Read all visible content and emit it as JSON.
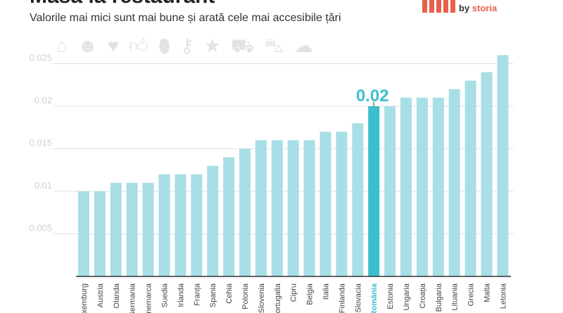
{
  "header": {
    "title": "Masă la restaurant",
    "subtitle": "Valorile mai mici sunt mai bune și arată cele mai accesibile țări",
    "logo_by": "by",
    "logo_brand": "storia"
  },
  "icons": [
    "home-icon",
    "smiley-icon",
    "heart-icon",
    "thumbs-up-icon",
    "pin-icon",
    "key-icon",
    "star-icon",
    "car-icon",
    "cart-icon",
    "chef-hat-icon"
  ],
  "colors": {
    "bar": "#a7dfe4",
    "highlight": "#3bbfcc",
    "grid": "#e2e2e2",
    "axis": "#333333"
  },
  "chart_data": {
    "type": "bar",
    "title": "Masă la restaurant",
    "subtitle": "Valorile mai mici sunt mai bune și arată cele mai accesibile țări",
    "categories": [
      "Luxemburg",
      "Austria",
      "Olanda",
      "Germania",
      "Danemarca",
      "Suedia",
      "Irlanda",
      "Franța",
      "Spania",
      "Cehia",
      "Polonia",
      "Slovenia",
      "Portugalia",
      "Cipru",
      "Belgia",
      "Italia",
      "Finlanda",
      "Slovacia",
      "România",
      "Estonia",
      "Ungaria",
      "Croația",
      "Bulgaria",
      "Lituania",
      "Grecia",
      "Malta",
      "Letonia"
    ],
    "values": [
      0.01,
      0.01,
      0.011,
      0.011,
      0.011,
      0.012,
      0.012,
      0.012,
      0.013,
      0.014,
      0.015,
      0.016,
      0.016,
      0.016,
      0.016,
      0.017,
      0.017,
      0.018,
      0.02,
      0.02,
      0.021,
      0.021,
      0.021,
      0.022,
      0.023,
      0.024,
      0.026
    ],
    "highlight": "România",
    "highlight_label": "0.02",
    "yticks": [
      "0.005",
      "0.01",
      "0.015",
      "0.02",
      "0.025"
    ],
    "ytick_values": [
      0.005,
      0.01,
      0.015,
      0.02,
      0.025
    ],
    "ylim": [
      0,
      0.026
    ],
    "grid": true,
    "xlabel": "",
    "ylabel": ""
  }
}
